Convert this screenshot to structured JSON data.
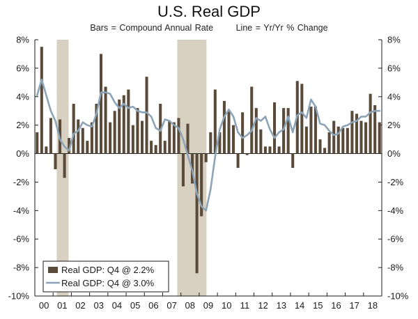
{
  "chart_data": {
    "type": "bar+line",
    "title": "U.S. Real GDP",
    "subtitle_left": "Bars = Compound Annual Rate",
    "subtitle_right": "Line = Yr/Yr % Change",
    "ylim": [
      -10,
      8
    ],
    "yticks": [
      -10,
      -8,
      -6,
      -4,
      -2,
      0,
      2,
      4,
      6,
      8
    ],
    "ytick_labels_left": [
      "-10%",
      "-8%",
      "-6%",
      "-4%",
      "-2%",
      "0%",
      "2%",
      "4%",
      "6%",
      "8%"
    ],
    "ytick_labels_right": [
      "-10%",
      "-8%",
      "-6%",
      "-4%",
      "-2%",
      "0%",
      "2%",
      "4%",
      "6%",
      "8%"
    ],
    "x_tick_labels": [
      "00",
      "01",
      "02",
      "03",
      "04",
      "05",
      "06",
      "07",
      "08",
      "09",
      "10",
      "11",
      "12",
      "13",
      "14",
      "15",
      "16",
      "17",
      "18"
    ],
    "x_start_year": 2000,
    "quarters_per_year": 4,
    "recessions": [
      {
        "start_index": 4.8,
        "end_index": 7.4
      },
      {
        "start_index": 31.2,
        "end_index": 37.6
      }
    ],
    "colors": {
      "bars": "#5a4a3a",
      "line": "#8ca4b8",
      "recession": "#d8d0c0",
      "axis": "#1a1a1a"
    },
    "series": [
      {
        "name": "Real GDP: Q4 @ 2.2%",
        "type": "bar",
        "values": [
          1.5,
          7.5,
          0.5,
          2.5,
          -1.1,
          2.4,
          -1.7,
          1.1,
          3.5,
          2.4,
          1.8,
          0.9,
          2.2,
          3.5,
          7.0,
          4.7,
          2.2,
          3.0,
          3.8,
          4.1,
          4.5,
          2.0,
          3.2,
          2.3,
          5.4,
          0.9,
          0.6,
          3.5,
          0.9,
          2.3,
          2.2,
          2.5,
          -2.3,
          2.1,
          -2.1,
          -8.4,
          -4.4,
          -0.6,
          1.5,
          4.5,
          1.5,
          3.7,
          3.0,
          2.0,
          -1.0,
          2.9,
          -0.1,
          4.7,
          3.2,
          1.7,
          0.5,
          0.5,
          3.6,
          0.5,
          3.2,
          3.2,
          -1.0,
          5.1,
          4.9,
          1.9,
          3.3,
          3.3,
          1.0,
          0.4,
          1.5,
          2.3,
          1.9,
          1.8,
          1.8,
          3.0,
          2.8,
          2.3,
          2.2,
          4.2,
          3.4,
          2.2
        ]
      },
      {
        "name": "Real GDP: Q4 @ 3.0%",
        "type": "line",
        "values": [
          4.1,
          5.2,
          4.1,
          3.0,
          2.3,
          1.0,
          0.5,
          0.2,
          1.4,
          1.6,
          2.2,
          2.0,
          1.9,
          2.8,
          4.3,
          4.3,
          4.2,
          3.6,
          3.2,
          3.5,
          3.2,
          3.3,
          3.0,
          2.9,
          2.9,
          2.6,
          1.8,
          1.6,
          2.4,
          2.3,
          2.0,
          1.8,
          1.0,
          -0.1,
          -1.2,
          -2.8,
          -3.7,
          -4.0,
          -2.5,
          -0.2,
          1.7,
          2.6,
          3.1,
          2.6,
          1.5,
          1.1,
          1.3,
          1.6,
          2.5,
          2.3,
          2.6,
          1.7,
          1.1,
          1.5,
          1.7,
          2.6,
          1.5,
          2.7,
          2.9,
          2.5,
          3.8,
          3.3,
          2.1,
          2.0,
          1.6,
          1.3,
          1.4,
          1.9,
          2.0,
          2.2,
          2.3,
          2.6,
          2.6,
          2.9,
          3.0,
          3.0
        ]
      }
    ]
  }
}
